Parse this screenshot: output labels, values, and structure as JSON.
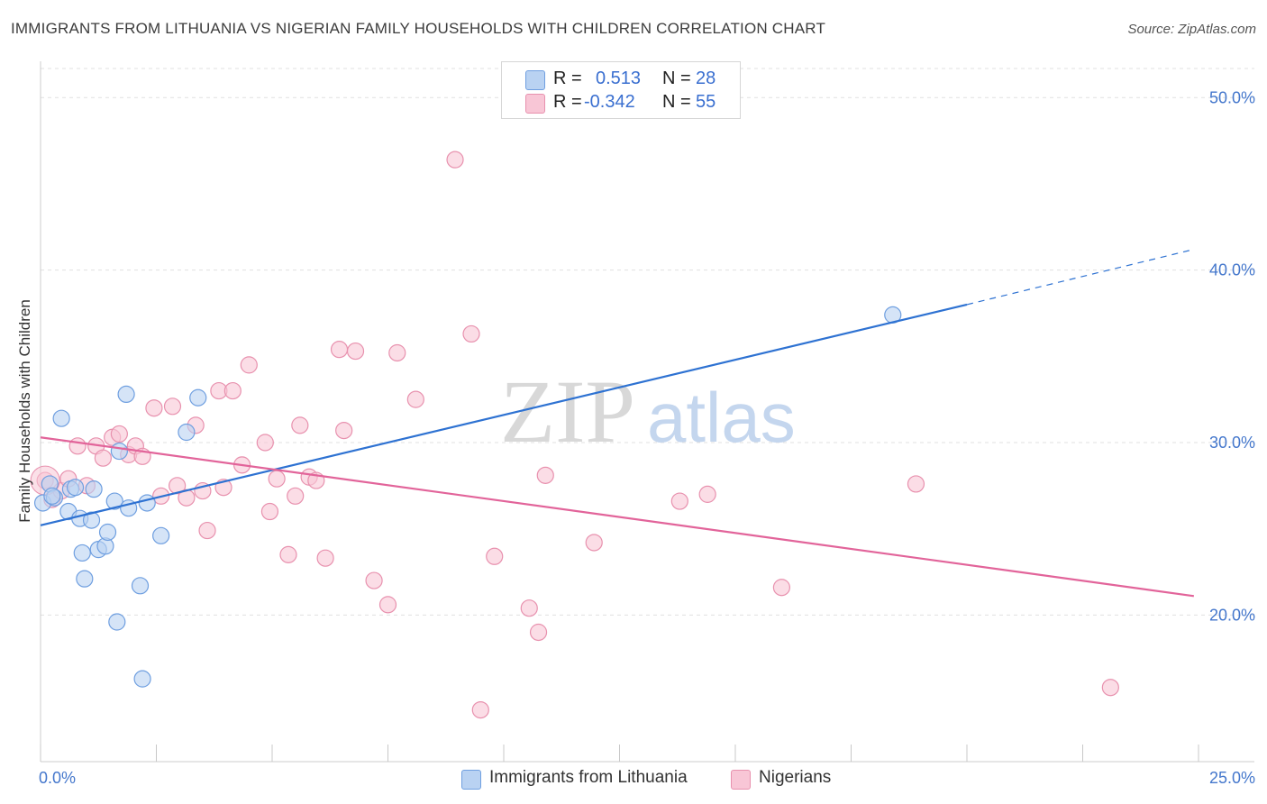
{
  "header": {
    "title": "IMMIGRANTS FROM LITHUANIA VS NIGERIAN FAMILY HOUSEHOLDS WITH CHILDREN CORRELATION CHART",
    "source": "Source: ZipAtlas.com"
  },
  "watermark": {
    "zip": "ZIP",
    "atlas": "atlas"
  },
  "legend": {
    "series": [
      {
        "r_label": "R =",
        "r_value": "0.513",
        "n_label": "N =",
        "n_value": "28"
      },
      {
        "r_label": "R =",
        "r_value": "-0.342",
        "n_label": "N =",
        "n_value": "55"
      }
    ]
  },
  "bottom_legend": {
    "items": [
      {
        "label": "Immigrants from Lithuania"
      },
      {
        "label": "Nigerians"
      }
    ]
  },
  "colors": {
    "blue_fill": "#b9d2f2",
    "blue_stroke": "#6f9fe0",
    "blue_line": "#2e72d2",
    "pink_fill": "#f8c6d6",
    "pink_stroke": "#e891ae",
    "pink_line": "#e2649a",
    "grid": "#e0e0e0",
    "axis_text": "#4477cc"
  },
  "chart_data": {
    "type": "scatter",
    "title": "IMMIGRANTS FROM LITHUANIA VS NIGERIAN FAMILY HOUSEHOLDS WITH CHILDREN CORRELATION CHART",
    "xlabel": "",
    "ylabel": "Family Households with Children",
    "xlim": [
      0,
      25
    ],
    "ylim": [
      11.5,
      52
    ],
    "x_tick_labels": [
      "0.0%",
      "25.0%"
    ],
    "y_ticks": [
      20,
      30,
      40,
      50
    ],
    "y_tick_labels": [
      "20.0%",
      "30.0%",
      "40.0%",
      "50.0%"
    ],
    "series": [
      {
        "name": "Immigrants from Lithuania",
        "color": "blue",
        "r": 0.513,
        "n": 28,
        "trend": {
          "x0": 0.0,
          "y0": 25.2,
          "x1": 20.0,
          "y1": 38.0,
          "dash_x_end": 24.9,
          "dash_y_end": 41.2
        },
        "points": [
          [
            0.05,
            26.5
          ],
          [
            0.2,
            27.6
          ],
          [
            0.3,
            26.8
          ],
          [
            0.45,
            31.4
          ],
          [
            0.6,
            26.0
          ],
          [
            0.65,
            27.3
          ],
          [
            0.85,
            25.6
          ],
          [
            0.9,
            23.6
          ],
          [
            0.95,
            22.1
          ],
          [
            1.1,
            25.5
          ],
          [
            1.15,
            27.3
          ],
          [
            1.25,
            23.8
          ],
          [
            1.4,
            24.0
          ],
          [
            1.45,
            24.8
          ],
          [
            1.6,
            26.6
          ],
          [
            1.65,
            19.6
          ],
          [
            1.7,
            29.5
          ],
          [
            1.85,
            32.8
          ],
          [
            1.9,
            26.2
          ],
          [
            2.15,
            21.7
          ],
          [
            2.2,
            16.3
          ],
          [
            2.3,
            26.5
          ],
          [
            2.6,
            24.6
          ],
          [
            3.15,
            30.6
          ],
          [
            3.4,
            32.6
          ],
          [
            18.4,
            37.4
          ],
          [
            0.25,
            26.9
          ],
          [
            0.75,
            27.4
          ]
        ]
      },
      {
        "name": "Nigerians",
        "color": "pink",
        "r": -0.342,
        "n": 55,
        "trend": {
          "x0": 0.0,
          "y0": 30.3,
          "x1": 24.9,
          "y1": 21.1
        },
        "points": [
          [
            0.1,
            27.8
          ],
          [
            0.25,
            26.7
          ],
          [
            0.45,
            27.2
          ],
          [
            0.6,
            27.9
          ],
          [
            0.8,
            29.8
          ],
          [
            1.0,
            27.5
          ],
          [
            1.2,
            29.8
          ],
          [
            1.35,
            29.1
          ],
          [
            1.55,
            30.3
          ],
          [
            1.7,
            30.5
          ],
          [
            1.9,
            29.3
          ],
          [
            2.05,
            29.8
          ],
          [
            2.2,
            29.2
          ],
          [
            2.45,
            32.0
          ],
          [
            2.6,
            26.9
          ],
          [
            2.85,
            32.1
          ],
          [
            2.95,
            27.5
          ],
          [
            3.15,
            26.8
          ],
          [
            3.35,
            31.0
          ],
          [
            3.5,
            27.2
          ],
          [
            3.6,
            24.9
          ],
          [
            3.85,
            33.0
          ],
          [
            3.95,
            27.4
          ],
          [
            4.15,
            33.0
          ],
          [
            4.35,
            28.7
          ],
          [
            4.5,
            34.5
          ],
          [
            4.85,
            30.0
          ],
          [
            4.95,
            26.0
          ],
          [
            5.1,
            27.9
          ],
          [
            5.35,
            23.5
          ],
          [
            5.5,
            26.9
          ],
          [
            5.6,
            31.0
          ],
          [
            5.8,
            28.0
          ],
          [
            5.95,
            27.8
          ],
          [
            6.15,
            23.3
          ],
          [
            6.45,
            35.4
          ],
          [
            6.55,
            30.7
          ],
          [
            6.8,
            35.3
          ],
          [
            7.2,
            22.0
          ],
          [
            7.5,
            20.6
          ],
          [
            7.7,
            35.2
          ],
          [
            8.1,
            32.5
          ],
          [
            8.95,
            46.4
          ],
          [
            9.3,
            36.3
          ],
          [
            9.5,
            14.5
          ],
          [
            9.8,
            23.4
          ],
          [
            10.55,
            20.4
          ],
          [
            10.75,
            19.0
          ],
          [
            10.9,
            28.1
          ],
          [
            11.95,
            24.2
          ],
          [
            13.8,
            26.6
          ],
          [
            14.4,
            27.0
          ],
          [
            16.0,
            21.6
          ],
          [
            18.9,
            27.6
          ],
          [
            23.1,
            15.8
          ]
        ]
      }
    ]
  }
}
